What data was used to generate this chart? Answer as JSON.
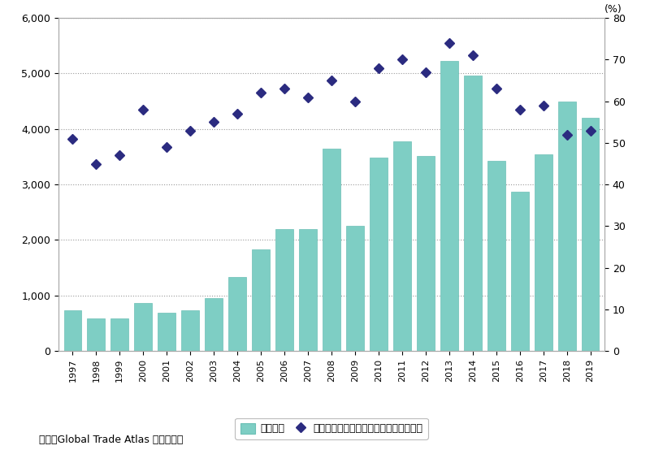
{
  "years": [
    1997,
    1998,
    1999,
    2000,
    2001,
    2002,
    2003,
    2004,
    2005,
    2006,
    2007,
    2008,
    2009,
    2010,
    2011,
    2012,
    2013,
    2014,
    2015,
    2016,
    2017,
    2018,
    2019
  ],
  "export_total": [
    740,
    590,
    580,
    860,
    690,
    730,
    950,
    1340,
    1830,
    2200,
    2200,
    3640,
    2260,
    3480,
    3780,
    3520,
    5230,
    4970,
    3430,
    2870,
    3540,
    4500,
    4200
  ],
  "mineral_ratio": [
    51,
    45,
    47,
    58,
    49,
    53,
    55,
    57,
    62,
    63,
    61,
    65,
    60,
    68,
    70,
    67,
    74,
    71,
    63,
    58,
    59,
    52,
    53
  ],
  "bar_color": "#7ecec4",
  "bar_edge_color": "#6bbfb5",
  "line_color": "#2b2b80",
  "background_color": "#ffffff",
  "plot_bg_color": "#ffffff",
  "ylabel_right": "(%)",
  "ylim_left": [
    0,
    6000
  ],
  "ylim_right": [
    0,
    80
  ],
  "yticks_left": [
    0,
    1000,
    2000,
    3000,
    4000,
    5000,
    6000
  ],
  "yticks_right": [
    0,
    10,
    20,
    30,
    40,
    50,
    60,
    70,
    80
  ],
  "legend_bar_label": "輸出総額",
  "legend_line_label": "輸出に占める鉱物性燃料の割合（右軸）",
  "source_text": "資料：Global Trade Atlas より作成。",
  "figsize": [
    8.0,
    5.54
  ],
  "dpi": 100
}
